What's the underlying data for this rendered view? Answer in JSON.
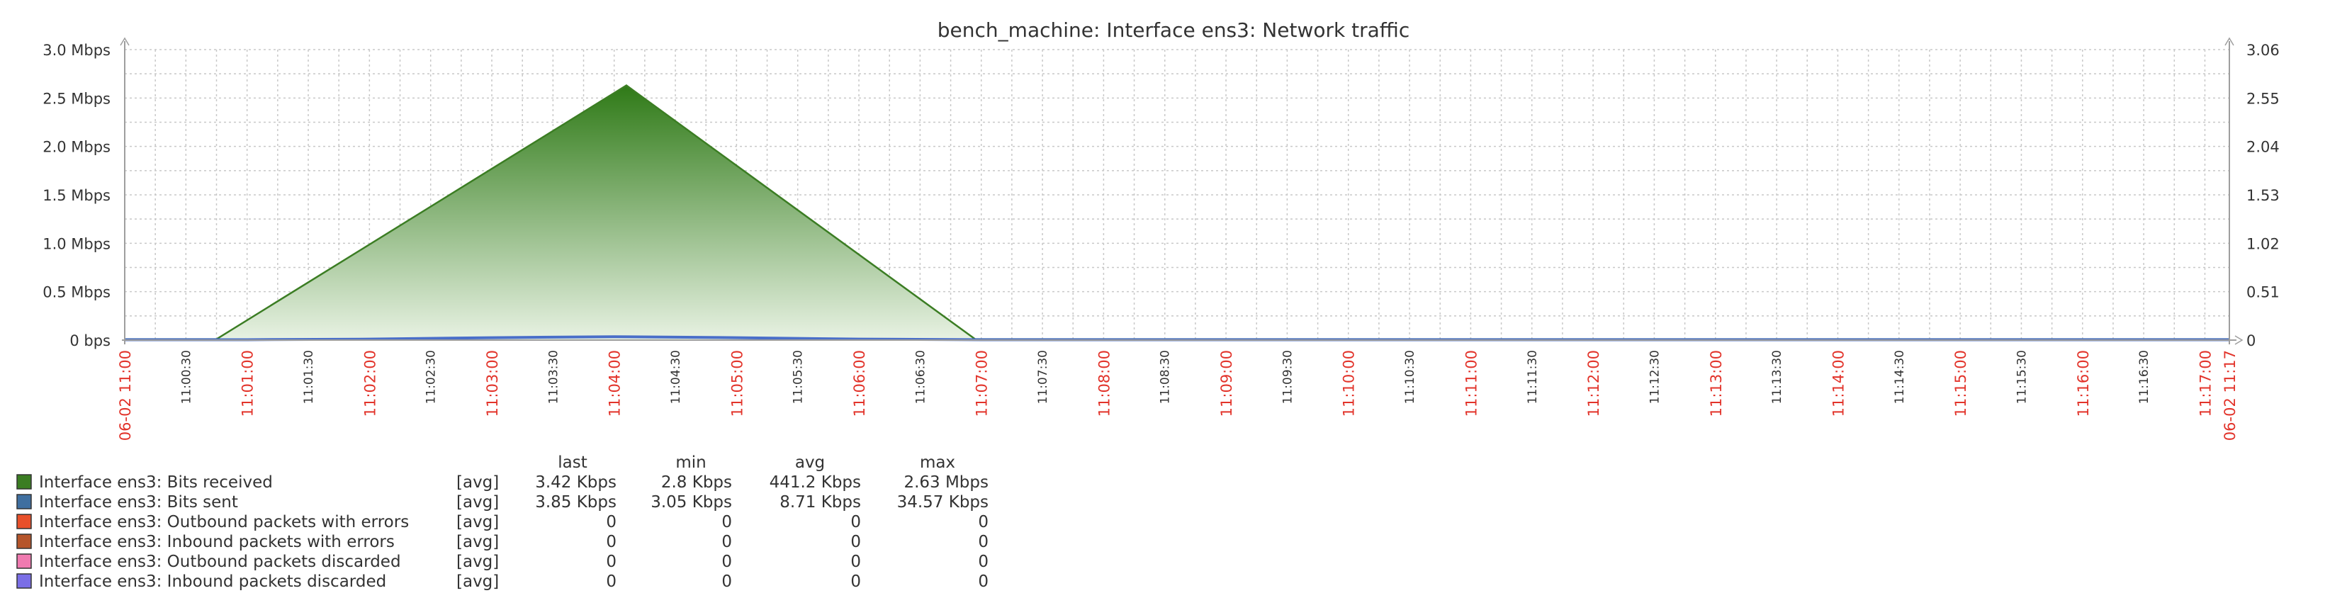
{
  "colors": {
    "grid": "#c8c8c8",
    "axis": "#9e9e9e",
    "text": "#333333",
    "major_tick_label": "#e2332a",
    "minor_tick_label": "#333333",
    "area_top": "#2f7a17",
    "area_bottom": "#e8f2e3",
    "sent_line": "#4a6fc9"
  },
  "chart_data": {
    "type": "area",
    "title": "bench_machine: Interface ens3: Network traffic",
    "x_ticks": [
      {
        "label": "06-02 11:00",
        "minute": 0,
        "major": true
      },
      {
        "label": "11:00:30",
        "minute": 0.5,
        "major": false
      },
      {
        "label": "11:01:00",
        "minute": 1,
        "major": true
      },
      {
        "label": "11:01:30",
        "minute": 1.5,
        "major": false
      },
      {
        "label": "11:02:00",
        "minute": 2,
        "major": true
      },
      {
        "label": "11:02:30",
        "minute": 2.5,
        "major": false
      },
      {
        "label": "11:03:00",
        "minute": 3,
        "major": true
      },
      {
        "label": "11:03:30",
        "minute": 3.5,
        "major": false
      },
      {
        "label": "11:04:00",
        "minute": 4,
        "major": true
      },
      {
        "label": "11:04:30",
        "minute": 4.5,
        "major": false
      },
      {
        "label": "11:05:00",
        "minute": 5,
        "major": true
      },
      {
        "label": "11:05:30",
        "minute": 5.5,
        "major": false
      },
      {
        "label": "11:06:00",
        "minute": 6,
        "major": true
      },
      {
        "label": "11:06:30",
        "minute": 6.5,
        "major": false
      },
      {
        "label": "11:07:00",
        "minute": 7,
        "major": true
      },
      {
        "label": "11:07:30",
        "minute": 7.5,
        "major": false
      },
      {
        "label": "11:08:00",
        "minute": 8,
        "major": true
      },
      {
        "label": "11:08:30",
        "minute": 8.5,
        "major": false
      },
      {
        "label": "11:09:00",
        "minute": 9,
        "major": true
      },
      {
        "label": "11:09:30",
        "minute": 9.5,
        "major": false
      },
      {
        "label": "11:10:00",
        "minute": 10,
        "major": true
      },
      {
        "label": "11:10:30",
        "minute": 10.5,
        "major": false
      },
      {
        "label": "11:11:00",
        "minute": 11,
        "major": true
      },
      {
        "label": "11:11:30",
        "minute": 11.5,
        "major": false
      },
      {
        "label": "11:12:00",
        "minute": 12,
        "major": true
      },
      {
        "label": "11:12:30",
        "minute": 12.5,
        "major": false
      },
      {
        "label": "11:13:00",
        "minute": 13,
        "major": true
      },
      {
        "label": "11:13:30",
        "minute": 13.5,
        "major": false
      },
      {
        "label": "11:14:00",
        "minute": 14,
        "major": true
      },
      {
        "label": "11:14:30",
        "minute": 14.5,
        "major": false
      },
      {
        "label": "11:15:00",
        "minute": 15,
        "major": true
      },
      {
        "label": "11:15:30",
        "minute": 15.5,
        "major": false
      },
      {
        "label": "11:16:00",
        "minute": 16,
        "major": true
      },
      {
        "label": "11:16:30",
        "minute": 16.5,
        "major": false
      },
      {
        "label": "11:17:00",
        "minute": 17,
        "major": true
      },
      {
        "label": "06-02 11:17",
        "minute": 17.2,
        "major": true
      }
    ],
    "x_range_minutes": [
      0,
      17.2
    ],
    "y_left": {
      "unit": "Mbps",
      "range": [
        0,
        3.0
      ],
      "tick_labels": [
        "0 bps",
        "0.5 Mbps",
        "1.0 Mbps",
        "1.5 Mbps",
        "2.0 Mbps",
        "2.5 Mbps",
        "3.0 Mbps"
      ],
      "tick_values": [
        0,
        0.5,
        1.0,
        1.5,
        2.0,
        2.5,
        3.0
      ]
    },
    "y_right": {
      "range": [
        0,
        3.06
      ],
      "tick_labels": [
        "0",
        "0.51",
        "1.02",
        "1.53",
        "2.04",
        "2.55",
        "3.06"
      ],
      "tick_values": [
        0,
        0.51,
        1.02,
        1.53,
        2.04,
        2.55,
        3.06
      ]
    },
    "grid": true,
    "series": [
      {
        "name": "Interface ens3: Bits received",
        "color": "#3b7d23",
        "type": "area",
        "x": [
          0,
          0.75,
          4.1,
          6.95,
          7.05,
          17.2
        ],
        "y": [
          0.01,
          0.01,
          2.63,
          0.01,
          0.01,
          0.01
        ]
      },
      {
        "name": "Interface ens3: Bits sent",
        "color": "#4a6fc9",
        "type": "line",
        "x": [
          0,
          1,
          2,
          3,
          4,
          5,
          6,
          7,
          8,
          9,
          10,
          11,
          12,
          13,
          14,
          15,
          16,
          17.2
        ],
        "y": [
          0.004,
          0.004,
          0.01,
          0.025,
          0.035,
          0.025,
          0.01,
          0.004,
          0.004,
          0.004,
          0.004,
          0.004,
          0.004,
          0.004,
          0.004,
          0.004,
          0.004,
          0.004
        ]
      }
    ],
    "legend": {
      "headers": [
        "last",
        "min",
        "avg",
        "max"
      ],
      "rows": [
        {
          "color": "#3b7d23",
          "name": "Interface ens3: Bits received",
          "func": "[avg]",
          "last": "3.42 Kbps",
          "min": "2.8 Kbps",
          "avg": "441.2 Kbps",
          "max": "2.63 Mbps"
        },
        {
          "color": "#3f6fa0",
          "name": "Interface ens3: Bits sent",
          "func": "[avg]",
          "last": "3.85 Kbps",
          "min": "3.05 Kbps",
          "avg": "8.71 Kbps",
          "max": "34.57 Kbps"
        },
        {
          "color": "#e8502a",
          "name": "Interface ens3: Outbound packets with errors",
          "func": "[avg]",
          "last": "0",
          "min": "0",
          "avg": "0",
          "max": "0"
        },
        {
          "color": "#b5552b",
          "name": "Interface ens3: Inbound packets with errors",
          "func": "[avg]",
          "last": "0",
          "min": "0",
          "avg": "0",
          "max": "0"
        },
        {
          "color": "#f07ab0",
          "name": "Interface ens3: Outbound packets discarded",
          "func": "[avg]",
          "last": "0",
          "min": "0",
          "avg": "0",
          "max": "0"
        },
        {
          "color": "#7a6ee6",
          "name": "Interface ens3: Inbound packets discarded",
          "func": "[avg]",
          "last": "0",
          "min": "0",
          "avg": "0",
          "max": "0"
        }
      ]
    }
  }
}
